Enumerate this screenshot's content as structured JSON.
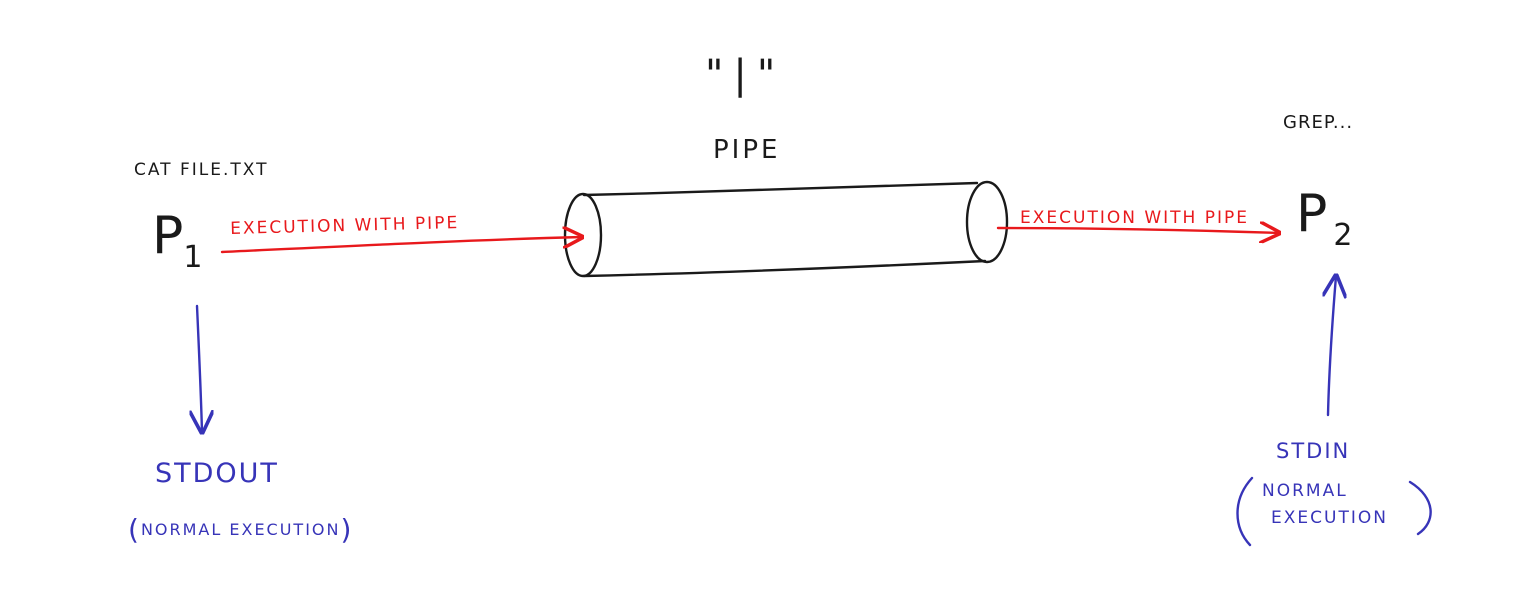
{
  "colors": {
    "ink": "#1a1a1a",
    "pipe_flow": "#e8191c",
    "normal_flow": "#3734b8"
  },
  "labels": {
    "pipe_symbol": "\"|\"",
    "pipe_title": "PIPE",
    "command_left": "CAT FILE.TXT",
    "command_right": "GREP...",
    "process_1": "P",
    "process_1_sub": "1",
    "process_2": "P",
    "process_2_sub": "2",
    "flow_left": "EXECUTION WITH PIPE",
    "flow_right": "EXECUTION WITH PIPE",
    "stdout": "STDOUT",
    "stdout_note": "NORMAL EXECUTION",
    "stdin": "STDIN",
    "stdin_note_line1": "NORMAL",
    "stdin_note_line2": "EXECUTION"
  }
}
